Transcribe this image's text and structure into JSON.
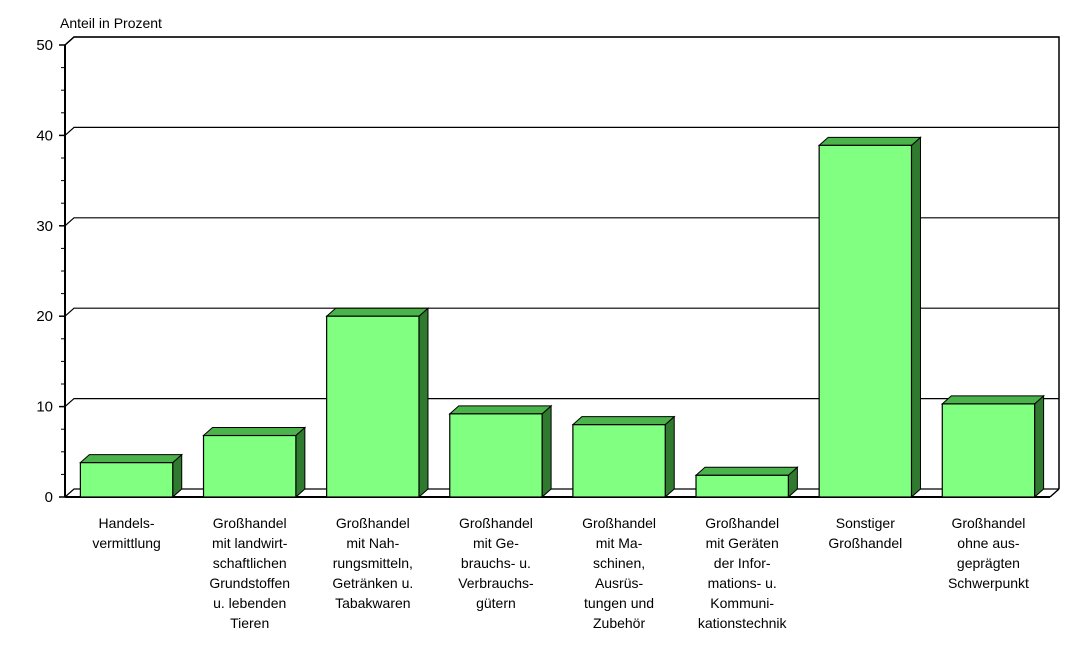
{
  "chart_data": {
    "type": "bar",
    "ylabel": "Anteil in Prozent",
    "ylim": [
      0,
      50
    ],
    "yticks": [
      "0",
      "10",
      "20",
      "30",
      "40",
      "50"
    ],
    "grid": true,
    "categories": [
      "Handels- vermittlung",
      "Großhandel mit landwirt- schaftlichen Grundstoffen u. lebenden Tieren",
      "Großhandel mit Nah- rungsmitteln, Getränken u. Tabakwaren",
      "Großhandel mit Ge- brauchs- u. Verbrauchs- gütern",
      "Großhandel mit Ma- schinen, Ausrüs- tungen und Zubehör",
      "Großhandel mit Geräten der Infor- mations- u. Kommuni- kationstechnik",
      "Sonstiger Großhandel",
      "Großhandel ohne aus- geprägten Schwerpunkt"
    ],
    "category_lines": [
      [
        "Handels-",
        "vermittlung"
      ],
      [
        "Großhandel",
        "mit landwirt-",
        "schaftlichen",
        "Grundstoffen",
        "u. lebenden",
        "Tieren"
      ],
      [
        "Großhandel",
        "mit Nah-",
        "rungsmitteln,",
        "Getränken u.",
        "Tabakwaren"
      ],
      [
        "Großhandel",
        "mit Ge-",
        "brauchs- u.",
        "Verbrauchs-",
        "gütern"
      ],
      [
        "Großhandel",
        "mit Ma-",
        "schinen,",
        "Ausrüs-",
        "tungen und",
        "Zubehör"
      ],
      [
        "Großhandel",
        "mit Geräten",
        "der Infor-",
        "mations- u.",
        "Kommuni-",
        "kationstechnik"
      ],
      [
        "Sonstiger",
        "Großhandel"
      ],
      [
        "Großhandel",
        "ohne aus-",
        "geprägten",
        "Schwerpunkt"
      ]
    ],
    "values": [
      3.8,
      6.8,
      20.0,
      9.2,
      8.0,
      2.4,
      38.9,
      10.3
    ],
    "colors": {
      "bar_front": "#80ff80",
      "bar_top": "#4ab44a",
      "bar_side": "#2f7a2f",
      "bar_edge": "#000000",
      "grid": "#000000"
    }
  }
}
